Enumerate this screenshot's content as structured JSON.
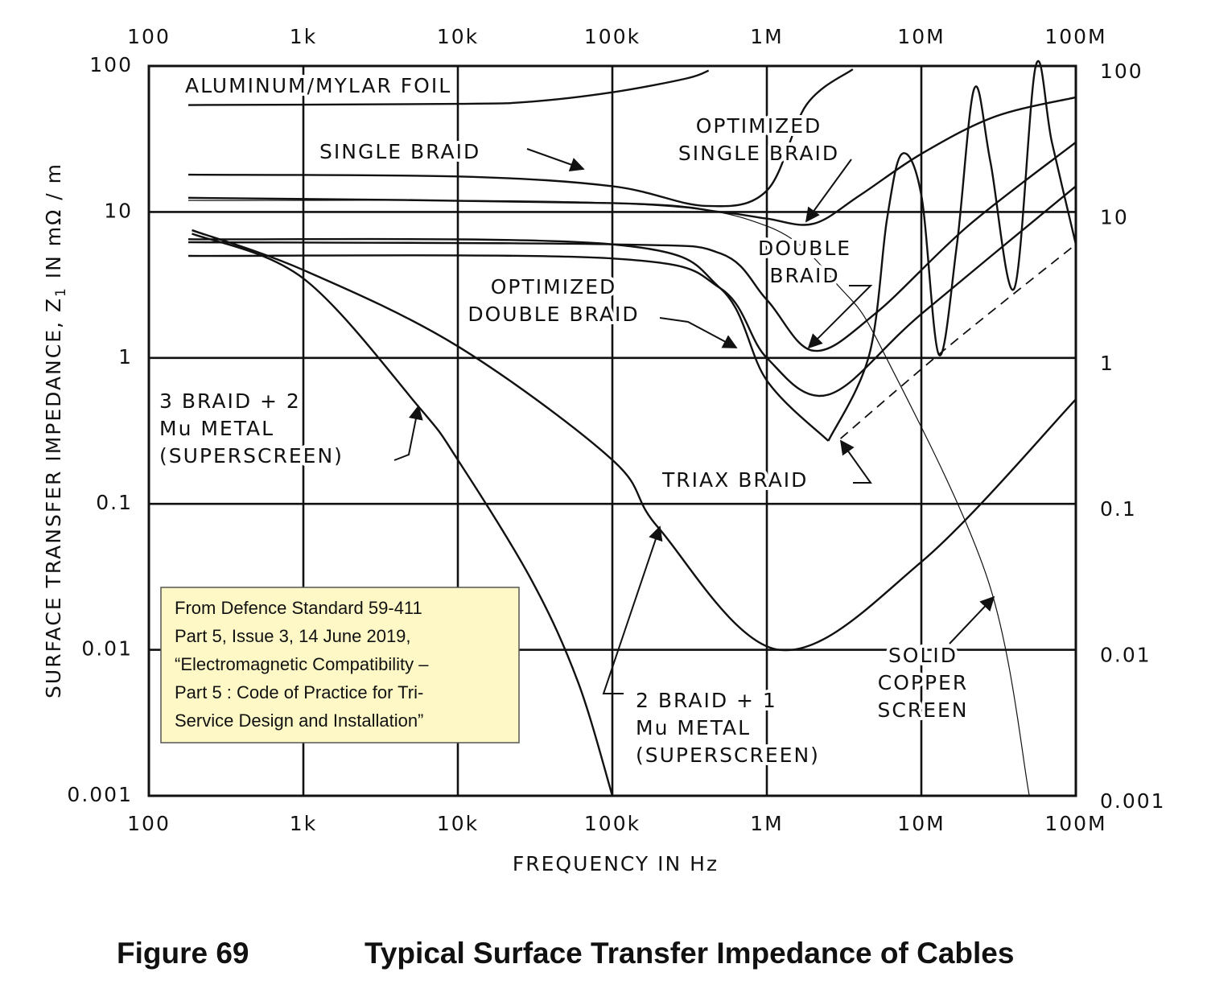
{
  "chart_data": {
    "type": "line",
    "figure_number": "Figure 69",
    "title": "Typical Surface Transfer Impedance of Cables",
    "x_label": "FREQUENCY IN Hz",
    "y_label": [
      "SURFACE TRANSFER IMPEDANCE, Z",
      "1",
      " IN mΩ / m"
    ],
    "note": [
      "From Defence  Standard 59-411",
      "Part 5, Issue 3, 14 June 2019,",
      "“Electromagnetic  Compatibility –",
      "Part 5 : Code of Practice for Tri-",
      "Service Design and Installation”"
    ],
    "x_log": true,
    "y_log": true,
    "grid": true,
    "xlim": [
      100,
      100000000
    ],
    "ylim": [
      0.001,
      100
    ],
    "xticks": [
      100,
      {
        "value": 1000,
        "label": "1k"
      },
      {
        "value": 10000,
        "label": "10k"
      },
      {
        "value": 100000,
        "label": "100k"
      },
      {
        "value": 1000000,
        "label": "1M"
      },
      {
        "value": 10000000,
        "label": "10M"
      },
      {
        "value": 100000000,
        "label": "100M"
      }
    ],
    "yticks": [
      0.001,
      0.01,
      0.1,
      1,
      10,
      100
    ],
    "series": [
      {
        "name": [
          "ALUMINUM/MYLAR FOIL"
        ],
        "color": "#111",
        "width": 2.4,
        "x": [
          180,
          10000,
          30000,
          100000,
          300000,
          420000
        ],
        "values": [
          54,
          55,
          57,
          66,
          82,
          93
        ]
      },
      {
        "name": [
          "SINGLE BRAID"
        ],
        "color": "#111",
        "width": 2.4,
        "x": [
          180,
          10000,
          100000,
          400000,
          1000000,
          1800000,
          3600000
        ],
        "values": [
          18,
          17.5,
          15,
          11,
          14,
          54,
          95
        ]
      },
      {
        "name": [
          "OPTIMIZED",
          "SINGLE BRAID"
        ],
        "color": "#111",
        "width": 2.4,
        "x": [
          180,
          100000,
          500000,
          1000000,
          2000000,
          4000000,
          10000000,
          30000000,
          100000000
        ],
        "values": [
          12.5,
          11.5,
          10,
          9,
          8.3,
          13,
          25,
          45,
          61
        ]
      },
      {
        "name": [
          "DOUBLE",
          "BRAID"
        ],
        "color": "#111",
        "width": 2.4,
        "x": [
          180,
          100000,
          500000,
          1000000,
          2000000,
          5000000,
          20000000,
          100000000
        ],
        "values": [
          6.2,
          6,
          5.2,
          2.5,
          1.12,
          2,
          8,
          30
        ]
      },
      {
        "name": [
          "OPTIMIZED",
          "DOUBLE BRAID"
        ],
        "color": "#111",
        "width": 2.4,
        "x": [
          180,
          100000,
          500000,
          1000000,
          2500000,
          10000000,
          100000000
        ],
        "values": [
          5,
          4.8,
          3,
          1,
          0.56,
          2,
          15
        ]
      },
      {
        "name": [
          "TRIAX BRAID"
        ],
        "color": "#111",
        "width": 2.4,
        "x": [
          180,
          100000,
          500000,
          1000000,
          2500000
        ],
        "values": [
          6.5,
          6,
          3,
          0.7,
          0.27
        ]
      },
      {
        "color": "#111",
        "width": 1.8,
        "dash": true,
        "x": [
          3000000,
          15000000,
          100000000
        ],
        "values": [
          0.28,
          1.2,
          6
        ]
      },
      {
        "color": "#111",
        "width": 2.4,
        "x": [
          2500000,
          4600000,
          6000000,
          7500000,
          10000000,
          13000000,
          17000000,
          22000000,
          28000000,
          40000000,
          55000000,
          70000000,
          100000000
        ],
        "values": [
          0.27,
          1.05,
          9,
          25,
          13,
          1.05,
          6,
          70,
          22,
          3,
          100,
          30,
          6
        ]
      },
      {
        "name": [
          "SOLID",
          "COPPER",
          "SCREEN"
        ],
        "color": "#111",
        "width": 1.2,
        "x": [
          180,
          100000,
          1000000,
          3000000,
          5800000,
          27000000,
          50000000
        ],
        "values": [
          12,
          11.5,
          8,
          3,
          1.05,
          0.03,
          0.001
        ]
      },
      {
        "name": [
          "3 BRAID + 2",
          "Mu METAL",
          "(SUPERSCREEN)"
        ],
        "color": "#111",
        "width": 2.4,
        "x": [
          190,
          1000,
          5600,
          10000,
          30000,
          60000,
          100000
        ],
        "values": [
          7.1,
          3.5,
          0.46,
          0.2,
          0.03,
          0.006,
          0.001
        ]
      },
      {
        "name": [
          "2 BRAID + 1",
          "Mu METAL",
          "(SUPERSCREEN)"
        ],
        "color": "#111",
        "width": 2.4,
        "x": [
          190,
          1000,
          10000,
          100000,
          200000,
          1200000,
          10000000,
          100000000
        ],
        "values": [
          7.5,
          4,
          1.2,
          0.2,
          0.068,
          0.01,
          0.04,
          0.52
        ]
      }
    ]
  }
}
